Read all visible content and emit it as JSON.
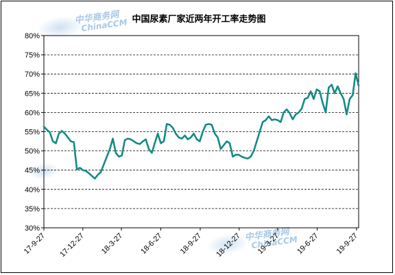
{
  "chart_data": {
    "type": "line",
    "title": "中国尿素厂家近两年开工率走势图",
    "xlabel": "",
    "ylabel": "",
    "ylim": [
      30,
      80
    ],
    "y_ticks": [
      "30%",
      "35%",
      "40%",
      "45%",
      "50%",
      "55%",
      "60%",
      "65%",
      "70%",
      "75%",
      "80%"
    ],
    "y_tick_values": [
      30,
      35,
      40,
      45,
      50,
      55,
      60,
      65,
      70,
      75,
      80
    ],
    "x_tick_labels": [
      "17-9-27",
      "17-12-27",
      "18-3-27",
      "18-6-27",
      "18-9-27",
      "18-12-27",
      "19-3-27",
      "19-6-27",
      "19-9-27"
    ],
    "x_tick_dates": [
      "2017-09-27",
      "2017-12-27",
      "2018-03-27",
      "2018-06-27",
      "2018-09-27",
      "2018-12-27",
      "2019-03-27",
      "2019-06-27",
      "2019-09-27"
    ],
    "grid": "horizontal dashed",
    "legend": "none",
    "series": [
      {
        "color": "#138a84",
        "points": [
          [
            "2017-09-27",
            56.3
          ],
          [
            "2017-10-04",
            55.5
          ],
          [
            "2017-10-11",
            54.8
          ],
          [
            "2017-10-18",
            52.5
          ],
          [
            "2017-10-25",
            52.0
          ],
          [
            "2017-11-01",
            54.5
          ],
          [
            "2017-11-08",
            55.2
          ],
          [
            "2017-11-15",
            54.5
          ],
          [
            "2017-11-22",
            53.5
          ],
          [
            "2017-11-29",
            52.5
          ],
          [
            "2017-12-06",
            52.3
          ],
          [
            "2017-12-13",
            45.2
          ],
          [
            "2017-12-20",
            45.6
          ],
          [
            "2017-12-27",
            45.0
          ],
          [
            "2018-01-03",
            44.8
          ],
          [
            "2018-01-10",
            44.2
          ],
          [
            "2018-01-17",
            43.5
          ],
          [
            "2018-01-24",
            42.8
          ],
          [
            "2018-01-31",
            43.8
          ],
          [
            "2018-02-07",
            44.5
          ],
          [
            "2018-02-14",
            46.5
          ],
          [
            "2018-02-21",
            48.5
          ],
          [
            "2018-02-28",
            50.5
          ],
          [
            "2018-03-07",
            53.2
          ],
          [
            "2018-03-14",
            49.5
          ],
          [
            "2018-03-21",
            48.5
          ],
          [
            "2018-03-28",
            48.8
          ],
          [
            "2018-04-04",
            52.8
          ],
          [
            "2018-04-11",
            53.2
          ],
          [
            "2018-04-18",
            53.0
          ],
          [
            "2018-04-25",
            52.5
          ],
          [
            "2018-05-02",
            52.0
          ],
          [
            "2018-05-09",
            51.8
          ],
          [
            "2018-05-16",
            52.5
          ],
          [
            "2018-05-23",
            53.0
          ],
          [
            "2018-05-30",
            50.5
          ],
          [
            "2018-06-06",
            49.5
          ],
          [
            "2018-06-13",
            52.0
          ],
          [
            "2018-06-20",
            54.5
          ],
          [
            "2018-06-27",
            52.0
          ],
          [
            "2018-07-04",
            52.5
          ],
          [
            "2018-07-11",
            57.0
          ],
          [
            "2018-07-18",
            56.8
          ],
          [
            "2018-07-25",
            56.0
          ],
          [
            "2018-08-01",
            54.5
          ],
          [
            "2018-08-08",
            53.5
          ],
          [
            "2018-08-15",
            53.2
          ],
          [
            "2018-08-22",
            54.0
          ],
          [
            "2018-08-29",
            53.0
          ],
          [
            "2018-09-05",
            53.5
          ],
          [
            "2018-09-12",
            54.5
          ],
          [
            "2018-09-19",
            53.0
          ],
          [
            "2018-09-26",
            52.5
          ],
          [
            "2018-10-03",
            55.0
          ],
          [
            "2018-10-10",
            56.8
          ],
          [
            "2018-10-17",
            57.0
          ],
          [
            "2018-10-24",
            56.8
          ],
          [
            "2018-10-31",
            54.5
          ],
          [
            "2018-11-07",
            53.5
          ],
          [
            "2018-11-14",
            50.5
          ],
          [
            "2018-11-21",
            51.5
          ],
          [
            "2018-11-28",
            52.5
          ],
          [
            "2018-12-05",
            52.0
          ],
          [
            "2018-12-12",
            48.5
          ],
          [
            "2018-12-19",
            49.0
          ],
          [
            "2018-12-26",
            49.0
          ],
          [
            "2019-01-02",
            48.5
          ],
          [
            "2019-01-09",
            48.2
          ],
          [
            "2019-01-16",
            48.0
          ],
          [
            "2019-01-23",
            48.5
          ],
          [
            "2019-01-30",
            50.0
          ],
          [
            "2019-02-06",
            52.5
          ],
          [
            "2019-02-13",
            55.0
          ],
          [
            "2019-02-20",
            57.5
          ],
          [
            "2019-02-27",
            58.0
          ],
          [
            "2019-03-06",
            59.0
          ],
          [
            "2019-03-13",
            58.0
          ],
          [
            "2019-03-20",
            58.2
          ],
          [
            "2019-03-27",
            58.0
          ],
          [
            "2019-04-03",
            57.5
          ],
          [
            "2019-04-10",
            60.0
          ],
          [
            "2019-04-17",
            60.8
          ],
          [
            "2019-04-24",
            59.8
          ],
          [
            "2019-05-01",
            58.2
          ],
          [
            "2019-05-08",
            59.5
          ],
          [
            "2019-05-15",
            60.0
          ],
          [
            "2019-05-22",
            61.0
          ],
          [
            "2019-05-29",
            63.5
          ],
          [
            "2019-06-05",
            63.8
          ],
          [
            "2019-06-12",
            65.5
          ],
          [
            "2019-06-19",
            63.5
          ],
          [
            "2019-06-26",
            66.0
          ],
          [
            "2019-07-03",
            65.5
          ],
          [
            "2019-07-10",
            62.5
          ],
          [
            "2019-07-17",
            60.0
          ],
          [
            "2019-07-24",
            66.5
          ],
          [
            "2019-07-31",
            67.2
          ],
          [
            "2019-08-07",
            65.0
          ],
          [
            "2019-08-14",
            66.8
          ],
          [
            "2019-08-21",
            65.0
          ],
          [
            "2019-08-28",
            63.5
          ],
          [
            "2019-09-04",
            59.5
          ],
          [
            "2019-09-11",
            63.5
          ],
          [
            "2019-09-18",
            64.5
          ],
          [
            "2019-09-25",
            70.2
          ],
          [
            "2019-10-02",
            67.0
          ]
        ]
      }
    ]
  },
  "watermarks": [
    {
      "line1": "中华商务网",
      "line2": "ChinaCCM"
    },
    {
      "line1": "中华商务网",
      "line2": "ChinaCCM"
    },
    {
      "line1": "中华商务网",
      "line2": "ChinaCCM"
    }
  ]
}
